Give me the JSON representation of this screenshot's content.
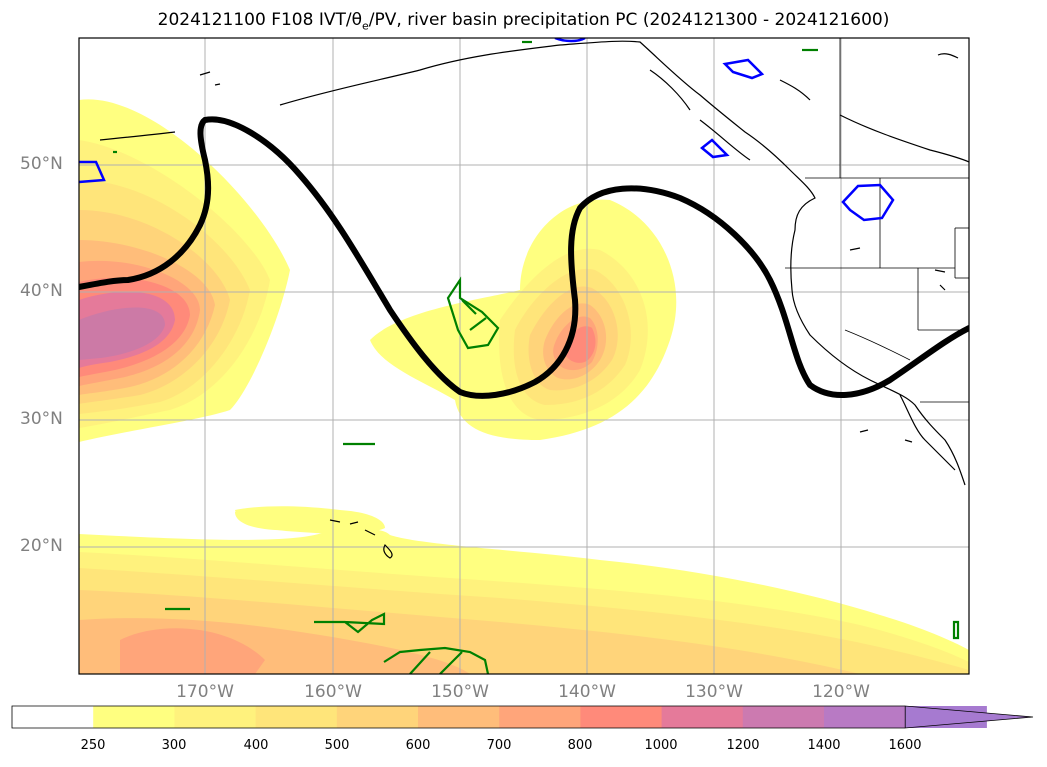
{
  "title": {
    "prefix": "2024121100 F108 IVT/",
    "theta": "θ",
    "theta_sub": "e",
    "suffix": "/PV, river basin precipitation PC (2024121300 - 2024121600)"
  },
  "lat_labels": [
    "50°N",
    "40°N",
    "30°N",
    "20°N"
  ],
  "lon_labels": [
    "170°W",
    "160°W",
    "150°W",
    "140°W",
    "130°W",
    "120°W"
  ],
  "colorbar": {
    "levels": [
      "250",
      "300",
      "400",
      "500",
      "600",
      "700",
      "800",
      "1000",
      "1200",
      "1400",
      "1600"
    ],
    "colors": [
      "#ffffff",
      "#ffff80",
      "#fff27d",
      "#ffe57a",
      "#ffd47a",
      "#ffbd7a",
      "#ffa57a",
      "#ff8a7a",
      "#e57a9a",
      "#cc7ab0",
      "#b87ac4",
      "#a67ad0"
    ],
    "extend": "max"
  },
  "legend_colors": {
    "ivt_contour": "#000000",
    "river_basin_pc": "#008000",
    "pv_contour": "#0000ff",
    "coastline": "#000000",
    "grid": "#b0b0b0"
  }
}
